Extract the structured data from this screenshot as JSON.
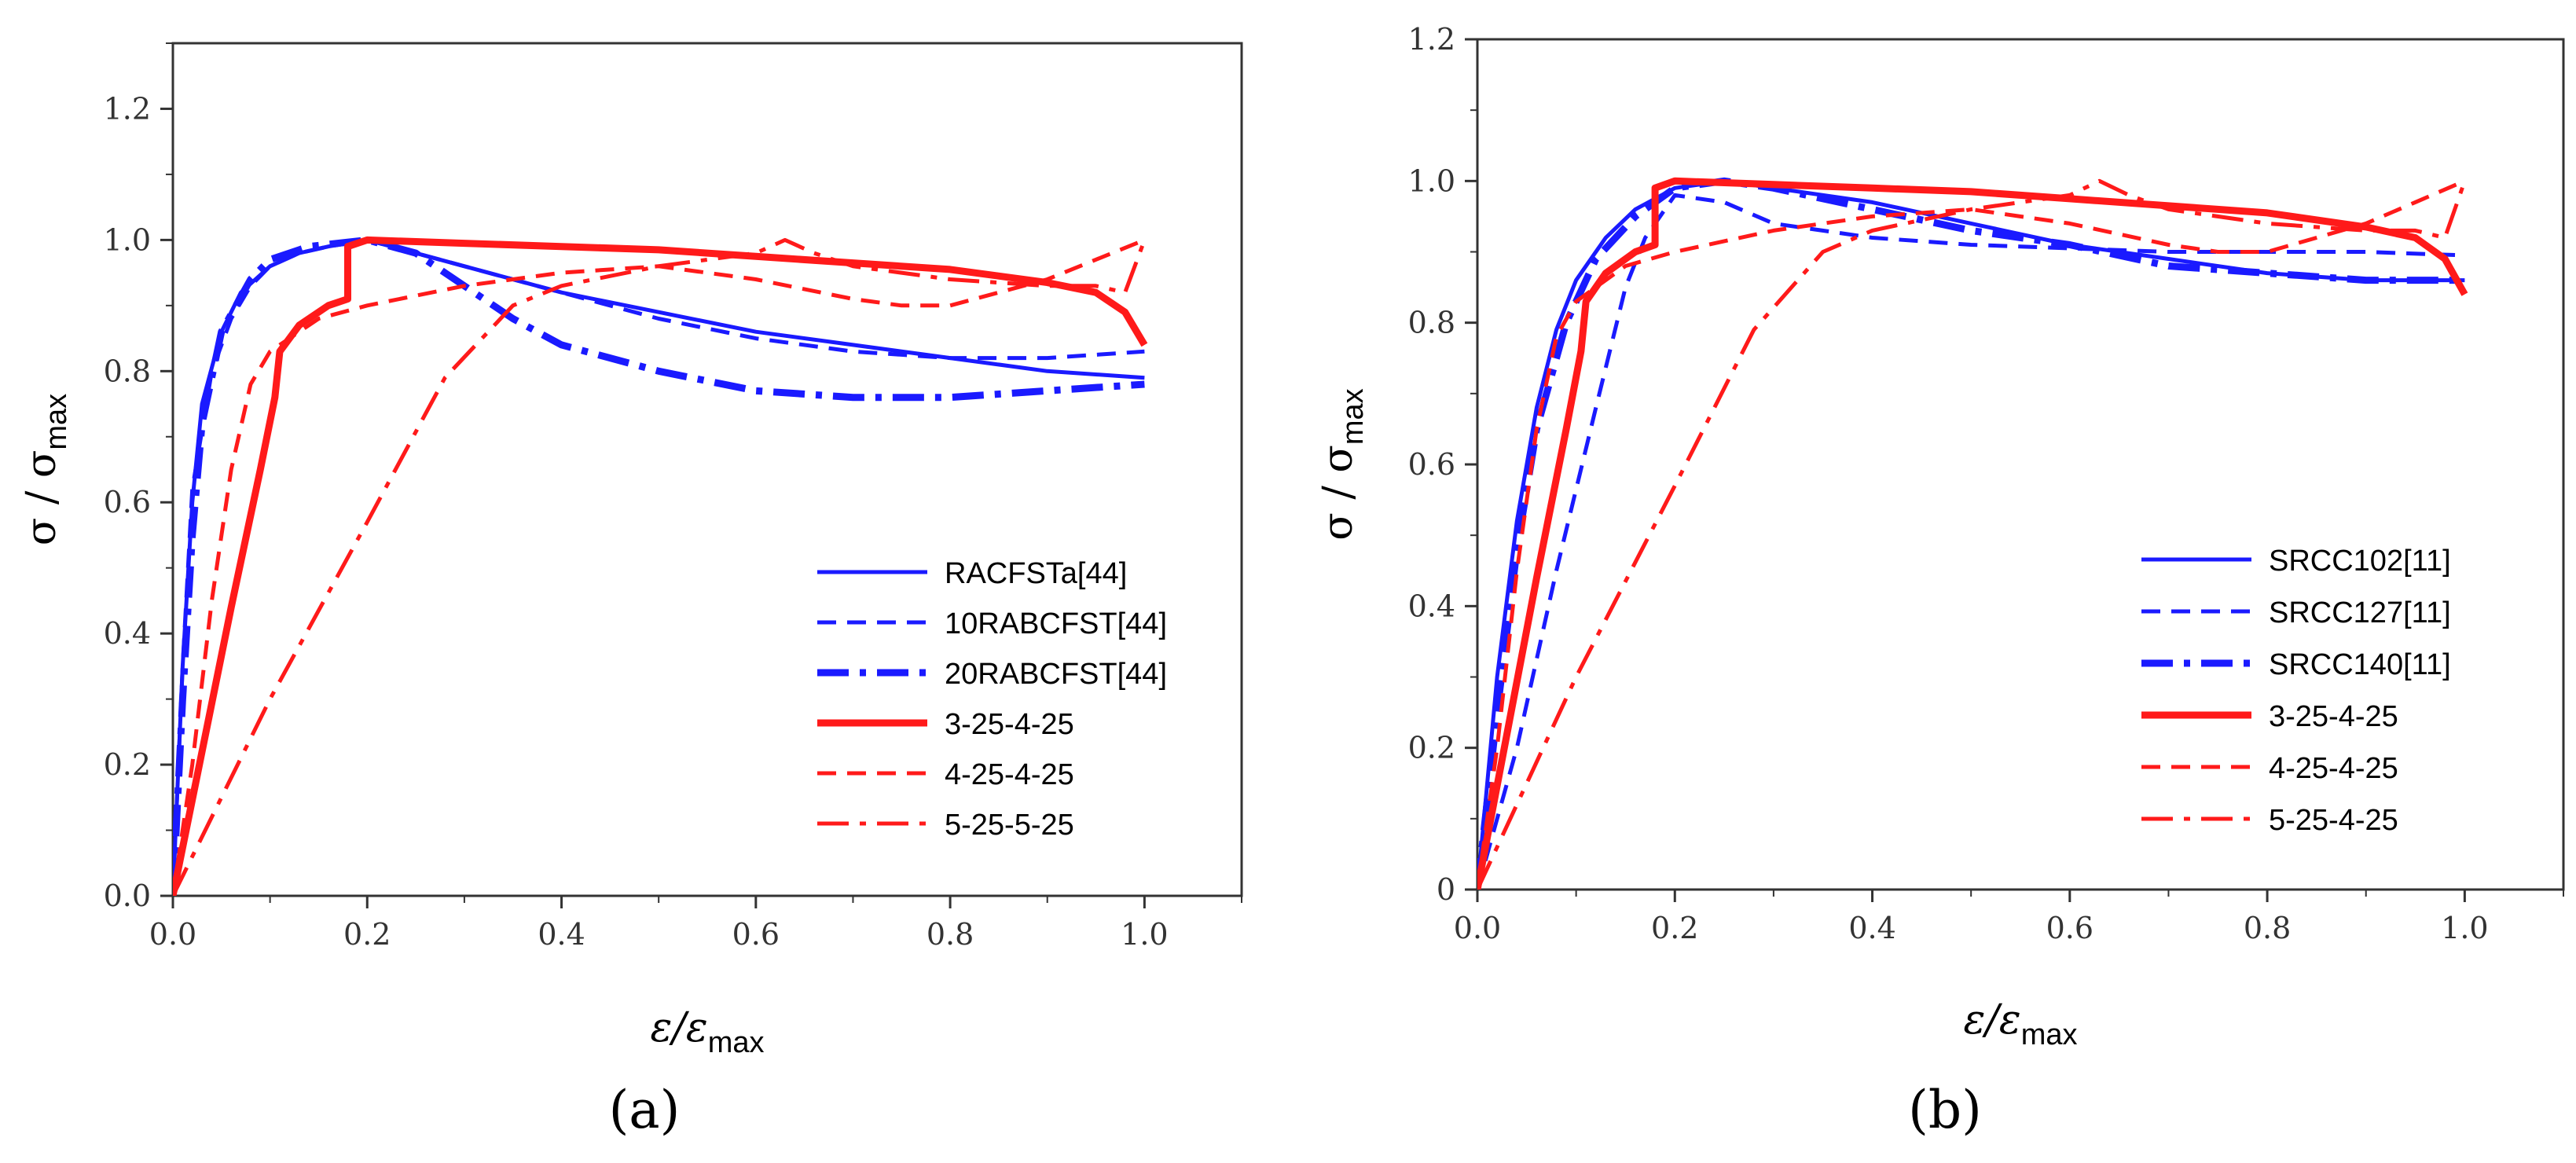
{
  "chart_data": [
    {
      "type": "line",
      "panel_label": "(a)",
      "xlabel": "ε/ε",
      "xlabel_sub": "max",
      "ylabel": "σ / σ",
      "ylabel_sub": "max",
      "xlim": [
        0,
        1.1
      ],
      "ylim": [
        0,
        1.3
      ],
      "xticks": [
        "0.0",
        "0.2",
        "0.4",
        "0.6",
        "0.8",
        "1.0"
      ],
      "yticks": [
        "0.0",
        "0.2",
        "0.4",
        "0.6",
        "0.8",
        "1.0",
        "1.2"
      ],
      "xtick_values": [
        0,
        0.2,
        0.4,
        0.6,
        0.8,
        1.0
      ],
      "ytick_values": [
        0,
        0.2,
        0.4,
        0.6,
        0.8,
        1.0,
        1.2
      ],
      "grid": false,
      "legend_position": "bottom-right",
      "series": [
        {
          "name": "RACFSTa[44]",
          "color": "#1a1aff",
          "style": "solid",
          "width": "normal",
          "x": [
            0,
            0.01,
            0.02,
            0.03,
            0.05,
            0.07,
            0.1,
            0.13,
            0.16,
            0.2,
            0.3,
            0.4,
            0.5,
            0.6,
            0.7,
            0.8,
            0.9,
            1.0
          ],
          "y": [
            0,
            0.35,
            0.6,
            0.75,
            0.86,
            0.92,
            0.96,
            0.98,
            0.99,
            1.0,
            0.96,
            0.92,
            0.89,
            0.86,
            0.84,
            0.82,
            0.8,
            0.79
          ]
        },
        {
          "name": "10RABCFST[44]",
          "color": "#1a1aff",
          "style": "dashed",
          "width": "normal",
          "x": [
            0,
            0.01,
            0.02,
            0.04,
            0.06,
            0.08,
            0.1,
            0.13,
            0.16,
            0.2,
            0.3,
            0.4,
            0.5,
            0.6,
            0.7,
            0.8,
            0.9,
            1.0
          ],
          "y": [
            0,
            0.35,
            0.62,
            0.8,
            0.88,
            0.93,
            0.96,
            0.98,
            0.99,
            1.0,
            0.96,
            0.92,
            0.88,
            0.85,
            0.83,
            0.82,
            0.82,
            0.83
          ]
        },
        {
          "name": "20RABCFST[44]",
          "color": "#1a1aff",
          "style": "dashdot",
          "width": "thick",
          "x": [
            0,
            0.01,
            0.02,
            0.03,
            0.05,
            0.08,
            0.1,
            0.14,
            0.2,
            0.25,
            0.3,
            0.35,
            0.4,
            0.5,
            0.6,
            0.7,
            0.8,
            0.9,
            1.0
          ],
          "y": [
            0,
            0.3,
            0.55,
            0.72,
            0.86,
            0.94,
            0.97,
            0.99,
            1.0,
            0.98,
            0.93,
            0.88,
            0.84,
            0.8,
            0.77,
            0.76,
            0.76,
            0.77,
            0.78
          ]
        },
        {
          "name": "3-25-4-25",
          "color": "#ff1a1a",
          "style": "solid",
          "width": "thick",
          "x": [
            0,
            0.03,
            0.06,
            0.09,
            0.105,
            0.11,
            0.13,
            0.16,
            0.18,
            0.18,
            0.2,
            0.3,
            0.4,
            0.5,
            0.6,
            0.7,
            0.8,
            0.9,
            0.95,
            0.98,
            1.0
          ],
          "y": [
            0,
            0.22,
            0.44,
            0.65,
            0.76,
            0.83,
            0.87,
            0.9,
            0.91,
            0.99,
            1.0,
            0.995,
            0.99,
            0.985,
            0.975,
            0.965,
            0.955,
            0.935,
            0.92,
            0.89,
            0.84
          ]
        },
        {
          "name": "4-25-4-25",
          "color": "#ff1a1a",
          "style": "dashed",
          "width": "normal",
          "x": [
            0,
            0.02,
            0.04,
            0.06,
            0.08,
            0.1,
            0.15,
            0.2,
            0.3,
            0.4,
            0.5,
            0.6,
            0.7,
            0.75,
            0.8,
            0.85,
            0.9,
            0.95,
            1.0
          ],
          "y": [
            0,
            0.2,
            0.45,
            0.65,
            0.78,
            0.83,
            0.88,
            0.9,
            0.93,
            0.95,
            0.96,
            0.94,
            0.91,
            0.9,
            0.9,
            0.92,
            0.94,
            0.97,
            1.0
          ]
        },
        {
          "name": "5-25-5-25",
          "color": "#ff1a1a",
          "style": "dashdot",
          "width": "normal",
          "x": [
            0,
            0.1,
            0.2,
            0.28,
            0.35,
            0.4,
            0.5,
            0.6,
            0.63,
            0.66,
            0.7,
            0.8,
            0.9,
            0.95,
            0.98,
            1.0
          ],
          "y": [
            0,
            0.3,
            0.57,
            0.79,
            0.9,
            0.93,
            0.96,
            0.98,
            1.0,
            0.98,
            0.96,
            0.94,
            0.93,
            0.93,
            0.92,
            1.0
          ]
        }
      ]
    },
    {
      "type": "line",
      "panel_label": "(b)",
      "xlabel": "ε/ε",
      "xlabel_sub": "max",
      "ylabel": "σ / σ",
      "ylabel_sub": "max",
      "xlim": [
        0,
        1.1
      ],
      "ylim": [
        0,
        1.2
      ],
      "xticks": [
        "0.0",
        "0.2",
        "0.4",
        "0.6",
        "0.8",
        "1.0"
      ],
      "yticks": [
        "0",
        "0.2",
        "0.4",
        "0.6",
        "0.8",
        "1.0",
        "1.2"
      ],
      "xtick_values": [
        0,
        0.2,
        0.4,
        0.6,
        0.8,
        1.0
      ],
      "ytick_values": [
        0,
        0.2,
        0.4,
        0.6,
        0.8,
        1.0,
        1.2
      ],
      "grid": false,
      "legend_position": "bottom-right",
      "series": [
        {
          "name": "SRCC102[11]",
          "color": "#1a1aff",
          "style": "solid",
          "width": "normal",
          "x": [
            0,
            0.02,
            0.04,
            0.06,
            0.08,
            0.1,
            0.13,
            0.16,
            0.2,
            0.25,
            0.3,
            0.4,
            0.5,
            0.6,
            0.7,
            0.8,
            0.9,
            1.0
          ],
          "y": [
            0,
            0.3,
            0.52,
            0.68,
            0.79,
            0.86,
            0.92,
            0.96,
            0.99,
            1.0,
            0.99,
            0.97,
            0.94,
            0.91,
            0.89,
            0.87,
            0.86,
            0.86
          ]
        },
        {
          "name": "SRCC127[11]",
          "color": "#1a1aff",
          "style": "dashed",
          "width": "normal",
          "x": [
            0,
            0.04,
            0.08,
            0.12,
            0.15,
            0.17,
            0.2,
            0.25,
            0.3,
            0.4,
            0.5,
            0.6,
            0.7,
            0.8,
            0.9,
            1.0
          ],
          "y": [
            0,
            0.2,
            0.45,
            0.68,
            0.85,
            0.92,
            0.98,
            0.97,
            0.94,
            0.92,
            0.91,
            0.905,
            0.9,
            0.9,
            0.9,
            0.895
          ]
        },
        {
          "name": "SRCC140[11]",
          "color": "#1a1aff",
          "style": "dashdot",
          "width": "thick",
          "x": [
            0,
            0.02,
            0.04,
            0.06,
            0.09,
            0.12,
            0.16,
            0.2,
            0.25,
            0.3,
            0.4,
            0.5,
            0.6,
            0.7,
            0.8,
            0.9,
            1.0
          ],
          "y": [
            0,
            0.25,
            0.48,
            0.65,
            0.8,
            0.89,
            0.95,
            0.99,
            1.0,
            0.99,
            0.96,
            0.93,
            0.91,
            0.88,
            0.87,
            0.86,
            0.86
          ]
        },
        {
          "name": "3-25-4-25",
          "color": "#ff1a1a",
          "style": "solid",
          "width": "thick",
          "x": [
            0,
            0.03,
            0.06,
            0.09,
            0.105,
            0.11,
            0.13,
            0.16,
            0.18,
            0.18,
            0.2,
            0.3,
            0.4,
            0.5,
            0.6,
            0.7,
            0.8,
            0.9,
            0.95,
            0.98,
            1.0
          ],
          "y": [
            0,
            0.22,
            0.44,
            0.65,
            0.76,
            0.83,
            0.87,
            0.9,
            0.91,
            0.99,
            1.0,
            0.995,
            0.99,
            0.985,
            0.975,
            0.965,
            0.955,
            0.935,
            0.92,
            0.89,
            0.84
          ]
        },
        {
          "name": "4-25-4-25",
          "color": "#ff1a1a",
          "style": "dashed",
          "width": "normal",
          "x": [
            0,
            0.02,
            0.04,
            0.06,
            0.08,
            0.1,
            0.15,
            0.2,
            0.3,
            0.4,
            0.5,
            0.6,
            0.7,
            0.75,
            0.8,
            0.85,
            0.9,
            0.95,
            1.0
          ],
          "y": [
            0,
            0.2,
            0.45,
            0.65,
            0.78,
            0.83,
            0.88,
            0.9,
            0.93,
            0.95,
            0.96,
            0.94,
            0.91,
            0.9,
            0.9,
            0.92,
            0.94,
            0.97,
            1.0
          ]
        },
        {
          "name": "5-25-4-25",
          "color": "#ff1a1a",
          "style": "dashdot",
          "width": "normal",
          "x": [
            0,
            0.1,
            0.2,
            0.28,
            0.35,
            0.4,
            0.5,
            0.6,
            0.63,
            0.66,
            0.7,
            0.8,
            0.9,
            0.95,
            0.98,
            1.0
          ],
          "y": [
            0,
            0.3,
            0.57,
            0.79,
            0.9,
            0.93,
            0.96,
            0.98,
            1.0,
            0.98,
            0.96,
            0.94,
            0.93,
            0.93,
            0.92,
            1.0
          ]
        }
      ]
    }
  ]
}
